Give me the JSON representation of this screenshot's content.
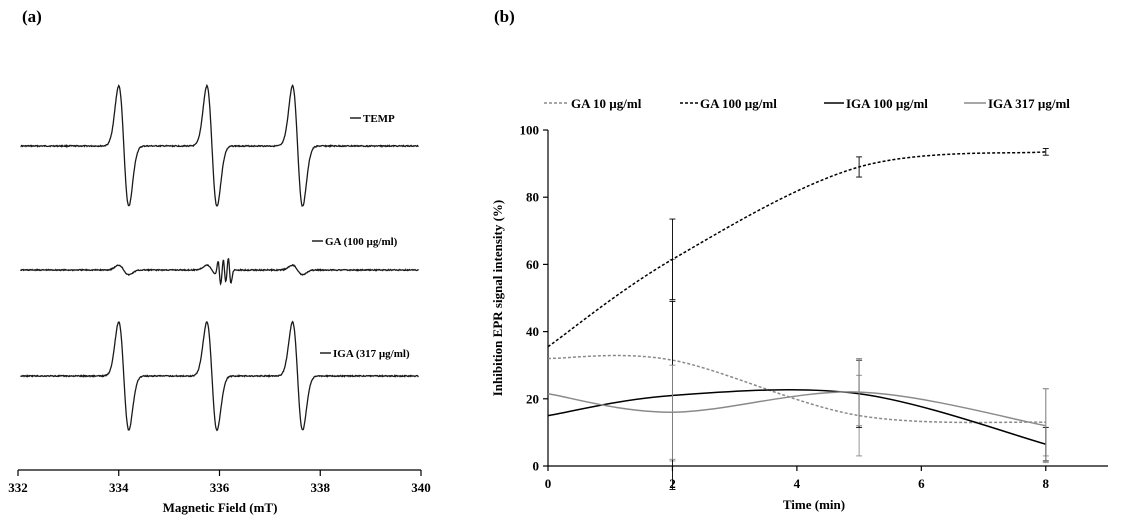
{
  "chart_data": [
    {
      "panel": "(a)",
      "type": "line",
      "xlabel": "Magnetic Field (mT)",
      "ylabel": "",
      "xlim": [
        332,
        340
      ],
      "x_ticks": [
        "332",
        "334",
        "336",
        "338",
        "340"
      ],
      "grid": false,
      "peak_positions_mT": [
        334.1,
        335.85,
        337.55
      ],
      "series": [
        {
          "name": "TEMP",
          "relative_amplitude": 1.0
        },
        {
          "name": "GA (100 µg/ml)",
          "relative_amplitude": 0.08
        },
        {
          "name": "IGA (317 µg/ml)",
          "relative_amplitude": 0.9
        }
      ]
    },
    {
      "panel": "(b)",
      "type": "line",
      "xlabel": "Time (min)",
      "ylabel": "Inhibition EPR signal  intensity (%)",
      "xlim": [
        0,
        9
      ],
      "ylim": [
        0,
        100
      ],
      "x_ticks": [
        "0",
        "2",
        "4",
        "6",
        "8"
      ],
      "y_ticks": [
        "0",
        "20",
        "40",
        "60",
        "80",
        "100"
      ],
      "grid": false,
      "legend_position": "top",
      "series": [
        {
          "name": "GA 10 µg/ml",
          "color": "#8a8a8a",
          "dash": "dashed",
          "points": [
            [
              0,
              32
            ],
            [
              2,
              31.5
            ],
            [
              5,
              15
            ],
            [
              8,
              13
            ]
          ],
          "errors": [
            0,
            30,
            12,
            10
          ]
        },
        {
          "name": "GA 100 µg/ml",
          "color": "#000000",
          "dash": "dashed",
          "points": [
            [
              0,
              35.5
            ],
            [
              2,
              61.5
            ],
            [
              5,
              89
            ],
            [
              8,
              93.5
            ]
          ],
          "errors": [
            0,
            12,
            3,
            1
          ]
        },
        {
          "name": "IGA 100 µg/ml",
          "color": "#000000",
          "dash": "solid",
          "points": [
            [
              0,
              15
            ],
            [
              2,
              21
            ],
            [
              5,
              21.5
            ],
            [
              8,
              6.5
            ]
          ],
          "errors": [
            0,
            28,
            10,
            5
          ]
        },
        {
          "name": "IGA 317 µg/ml",
          "color": "#8a8a8a",
          "dash": "solid",
          "points": [
            [
              0,
              21.5
            ],
            [
              2,
              16
            ],
            [
              5,
              22
            ],
            [
              8,
              12
            ]
          ],
          "errors": [
            0,
            14,
            10,
            11
          ]
        }
      ]
    }
  ]
}
